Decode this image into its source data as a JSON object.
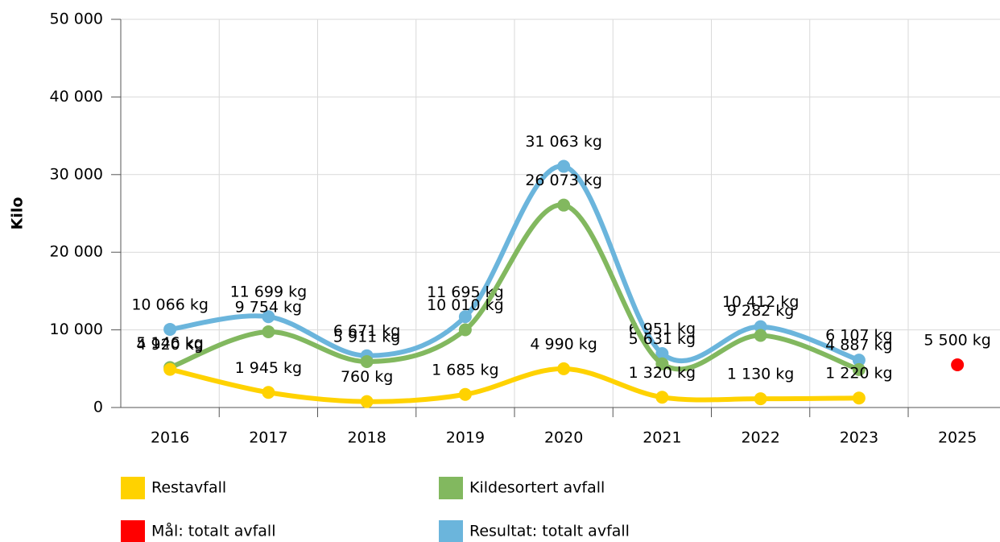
{
  "chart_data": {
    "type": "line",
    "y_label": "Kilo",
    "categories": [
      "2016",
      "2017",
      "2018",
      "2019",
      "2020",
      "2021",
      "2022",
      "2023",
      "2025"
    ],
    "ylim": [
      0,
      50000
    ],
    "yticks": [
      0,
      {
        "value": 10000,
        "label": "10 000"
      },
      {
        "value": 20000,
        "label": "20 000"
      },
      {
        "value": 30000,
        "label": "30 000"
      },
      {
        "value": 40000,
        "label": "40 000"
      },
      {
        "value": 50000,
        "label": "50 000"
      }
    ],
    "grid": true,
    "series": [
      {
        "name": "Restavfall",
        "color": "#ffd200",
        "values": [
          4920,
          1945,
          760,
          1685,
          4990,
          1320,
          1130,
          1220,
          null
        ],
        "value_labels": [
          "4 920 kg",
          "1 945 kg",
          "760 kg",
          "1 685 kg",
          "4 990 kg",
          "1 320 kg",
          "1 130 kg",
          "1 220 kg",
          null
        ]
      },
      {
        "name": "Kildesortert avfall",
        "color": "#82b85f",
        "values": [
          5146,
          9754,
          5911,
          10010,
          26073,
          5631,
          9282,
          4887,
          null
        ],
        "value_labels": [
          "5 146 kg",
          "9 754 kg",
          "5 911 kg",
          "10 010 kg",
          "26 073 kg",
          "5 631 kg",
          "9 282 kg",
          "4 887 kg",
          null
        ]
      },
      {
        "name": "Mål: totalt avfall",
        "color": "#ff0000",
        "values": [
          null,
          null,
          null,
          null,
          null,
          null,
          null,
          null,
          5500
        ],
        "value_labels": [
          null,
          null,
          null,
          null,
          null,
          null,
          null,
          null,
          "5 500 kg"
        ]
      },
      {
        "name": "Resultat: totalt avfall",
        "color": "#6bb5dc",
        "values": [
          10066,
          11699,
          6671,
          11695,
          31063,
          6951,
          10412,
          6107,
          null
        ],
        "value_labels": [
          "10 066 kg",
          "11 699 kg",
          "6 671 kg",
          "11 695 kg",
          "31 063 kg",
          "6 951 kg",
          "10 412 kg",
          "6 107 kg",
          null
        ]
      }
    ]
  }
}
